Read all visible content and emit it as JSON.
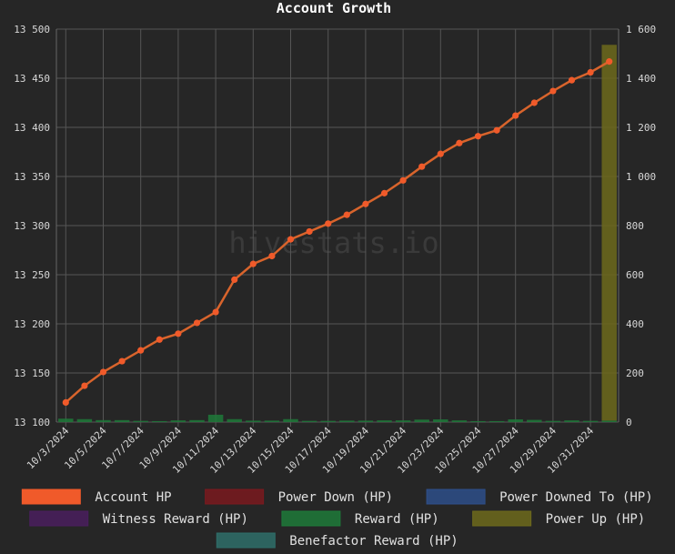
{
  "chart_data": {
    "type": "bar",
    "title": "Account Growth",
    "watermark": "hivestats.io",
    "x": [
      "10/3/2024",
      "10/4/2024",
      "10/5/2024",
      "10/6/2024",
      "10/7/2024",
      "10/8/2024",
      "10/9/2024",
      "10/10/2024",
      "10/11/2024",
      "10/12/2024",
      "10/13/2024",
      "10/14/2024",
      "10/15/2024",
      "10/16/2024",
      "10/17/2024",
      "10/18/2024",
      "10/19/2024",
      "10/20/2024",
      "10/21/2024",
      "10/22/2024",
      "10/23/2024",
      "10/24/2024",
      "10/25/2024",
      "10/26/2024",
      "10/27/2024",
      "10/28/2024",
      "10/29/2024",
      "10/30/2024",
      "10/31/2024",
      "11/1/2024"
    ],
    "x_tick_labels": [
      "10/3/2024",
      "10/5/2024",
      "10/7/2024",
      "10/9/2024",
      "10/11/2024",
      "10/13/2024",
      "10/15/2024",
      "10/17/2024",
      "10/19/2024",
      "10/21/2024",
      "10/23/2024",
      "10/25/2024",
      "10/27/2024",
      "10/29/2024",
      "10/31/2024"
    ],
    "y_left": {
      "ylim": [
        13100,
        13500
      ],
      "ticks": [
        13100,
        13150,
        13200,
        13250,
        13300,
        13350,
        13400,
        13450,
        13500
      ],
      "tick_labels": [
        "13 100",
        "13 150",
        "13 200",
        "13 250",
        "13 300",
        "13 350",
        "13 400",
        "13 450",
        "13 500"
      ]
    },
    "y_right": {
      "ylim": [
        0,
        1600
      ],
      "ticks": [
        0,
        200,
        400,
        600,
        800,
        1000,
        1200,
        1400,
        1600
      ],
      "tick_labels": [
        "0",
        "200",
        "400",
        "600",
        "800",
        "1 000",
        "1 200",
        "1 400",
        "1 600"
      ]
    },
    "grid": true,
    "legend_position": "bottom",
    "series": [
      {
        "name": "Account HP",
        "type": "line",
        "axis": "left",
        "color": "#f05a2a",
        "values": [
          13120,
          13137,
          13151,
          13162,
          13173,
          13184,
          13190,
          13201,
          13212,
          13245,
          13261,
          13269,
          13286,
          13294,
          13302,
          13311,
          13322,
          13333,
          13346,
          13360,
          13373,
          13384,
          13391,
          13397,
          13412,
          13425,
          13437,
          13448,
          13456,
          13467
        ]
      },
      {
        "name": "Power Down (HP)",
        "type": "bar",
        "axis": "right",
        "color": "#7a1a1f",
        "values": [
          0,
          0,
          0,
          0,
          0,
          0,
          0,
          0,
          0,
          0,
          0,
          0,
          0,
          0,
          0,
          0,
          0,
          0,
          0,
          0,
          0,
          0,
          0,
          0,
          0,
          0,
          0,
          0,
          0,
          0
        ]
      },
      {
        "name": "Power Downed To (HP)",
        "type": "bar",
        "axis": "right",
        "color": "#2e4f8a",
        "values": [
          0,
          0,
          0,
          0,
          0,
          0,
          0,
          0,
          0,
          0,
          0,
          0,
          0,
          0,
          0,
          0,
          0,
          0,
          0,
          0,
          0,
          0,
          0,
          0,
          0,
          0,
          0,
          0,
          0,
          0
        ]
      },
      {
        "name": "Witness Reward (HP)",
        "type": "bar",
        "axis": "right",
        "color": "#4a1f5e",
        "values": [
          0,
          0,
          0,
          0,
          0,
          0,
          0,
          0,
          0,
          0,
          0,
          0,
          0,
          0,
          0,
          0,
          0,
          0,
          0,
          0,
          0,
          0,
          0,
          0,
          0,
          0,
          0,
          0,
          0,
          0
        ]
      },
      {
        "name": "Reward (HP)",
        "type": "bar",
        "axis": "right",
        "color": "#1f7a3a",
        "values": [
          14,
          12,
          8,
          8,
          5,
          4,
          7,
          8,
          30,
          12,
          6,
          6,
          12,
          5,
          5,
          6,
          6,
          7,
          7,
          10,
          11,
          7,
          4,
          4,
          11,
          9,
          5,
          7,
          5,
          6
        ]
      },
      {
        "name": "Power Up (HP)",
        "type": "bar",
        "axis": "right",
        "color": "#6d6a1c",
        "values": [
          0,
          0,
          0,
          0,
          0,
          0,
          0,
          0,
          0,
          0,
          0,
          0,
          0,
          0,
          0,
          0,
          0,
          0,
          0,
          0,
          0,
          0,
          0,
          0,
          0,
          0,
          0,
          0,
          0,
          1530
        ]
      },
      {
        "name": "Benefactor Reward (HP)",
        "type": "bar",
        "axis": "right",
        "color": "#2f6e6a",
        "values": [
          0,
          0,
          0,
          0,
          0,
          0,
          0,
          0,
          0,
          0,
          0,
          0,
          0,
          0,
          0,
          0,
          0,
          0,
          0,
          0,
          0,
          0,
          0,
          0,
          0,
          0,
          0,
          0,
          0,
          0
        ]
      }
    ]
  }
}
